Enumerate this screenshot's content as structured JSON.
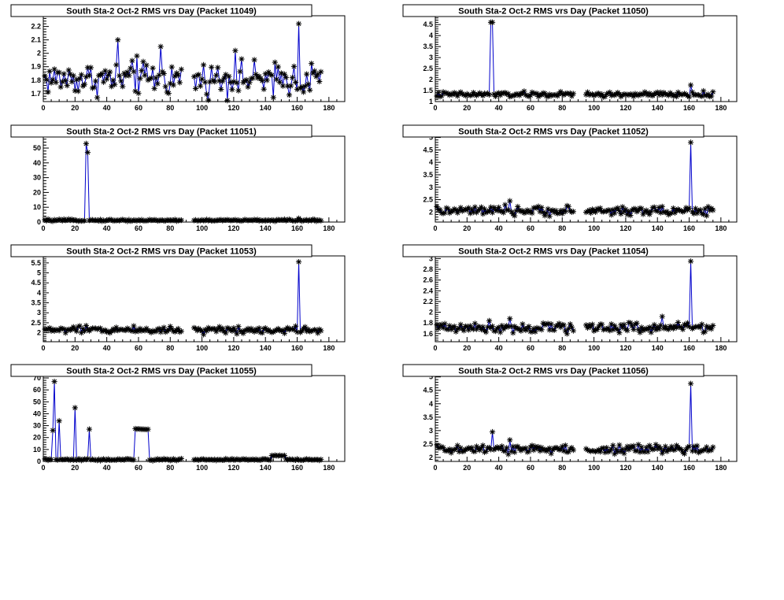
{
  "chart_data": [
    {
      "type": "line",
      "title": "South Sta-2 Oct-2 RMS vrs Day (Packet 11049)",
      "xlim": [
        0,
        190
      ],
      "ylim": [
        1.64,
        2.28
      ],
      "xticks": [
        0,
        20,
        40,
        60,
        80,
        100,
        120,
        140,
        160,
        180
      ],
      "yticks": [
        1.7,
        1.8,
        1.9,
        2.0,
        2.1,
        2.2
      ],
      "yticklabels": [
        "1.7",
        "1.8",
        "1.9",
        "2",
        "2.1",
        "2.2"
      ],
      "marker": "asterisk",
      "line_color": "#0000cc",
      "base": 1.81,
      "noise": 0.06,
      "gaps": [
        [
          88,
          94
        ]
      ],
      "spikes": [
        {
          "x": 47,
          "y": 2.1
        },
        {
          "x": 59,
          "y": 1.98
        },
        {
          "x": 74,
          "y": 2.05
        },
        {
          "x": 161,
          "y": 2.22
        },
        {
          "x": 121,
          "y": 2.02
        },
        {
          "x": 145,
          "y": 1.67
        }
      ]
    },
    {
      "type": "line",
      "title": "South Sta-2 Oct-2 RMS vrs Day (Packet 11050)",
      "xlim": [
        0,
        190
      ],
      "ylim": [
        1.0,
        4.9
      ],
      "xticks": [
        0,
        20,
        40,
        60,
        80,
        100,
        120,
        140,
        160,
        180
      ],
      "yticks": [
        1.0,
        1.5,
        2.0,
        2.5,
        3.0,
        3.5,
        4.0,
        4.5
      ],
      "yticklabels": [
        "1",
        "1.5",
        "2",
        "2.5",
        "3",
        "3.5",
        "4",
        "4.5"
      ],
      "marker": "asterisk",
      "line_color": "#0000cc",
      "base": 1.32,
      "noise": 0.06,
      "gaps": [
        [
          88,
          94
        ]
      ],
      "spikes": [
        {
          "x": 35,
          "y": 4.6
        },
        {
          "x": 36,
          "y": 4.6
        },
        {
          "x": 161,
          "y": 1.75
        }
      ]
    },
    {
      "type": "line",
      "title": "South Sta-2 Oct-2 RMS vrs Day (Packet 11051)",
      "xlim": [
        0,
        190
      ],
      "ylim": [
        0,
        58
      ],
      "xticks": [
        0,
        20,
        40,
        60,
        80,
        100,
        120,
        140,
        160,
        180
      ],
      "yticks": [
        0,
        10,
        20,
        30,
        40,
        50
      ],
      "yticklabels": [
        "0",
        "10",
        "20",
        "30",
        "40",
        "50"
      ],
      "marker": "asterisk",
      "line_color": "#0000cc",
      "base": 1.2,
      "noise": 0.3,
      "gaps": [
        [
          88,
          94
        ]
      ],
      "spikes": [
        {
          "x": 27,
          "y": 53
        },
        {
          "x": 28,
          "y": 47
        },
        {
          "x": 161,
          "y": 2.5
        }
      ]
    },
    {
      "type": "line",
      "title": "South Sta-2 Oct-2 RMS vrs Day (Packet 11052)",
      "xlim": [
        0,
        190
      ],
      "ylim": [
        1.6,
        5.05
      ],
      "xticks": [
        0,
        20,
        40,
        60,
        80,
        100,
        120,
        140,
        160,
        180
      ],
      "yticks": [
        2.0,
        2.5,
        3.0,
        3.5,
        4.0,
        4.5,
        5.0
      ],
      "yticklabels": [
        "2",
        "2.5",
        "3",
        "3.5",
        "4",
        "4.5",
        "5"
      ],
      "marker": "asterisk",
      "line_color": "#0000cc",
      "base": 2.05,
      "noise": 0.09,
      "gaps": [
        [
          88,
          94
        ]
      ],
      "spikes": [
        {
          "x": 47,
          "y": 2.45
        },
        {
          "x": 161,
          "y": 4.8
        }
      ]
    },
    {
      "type": "line",
      "title": "South Sta-2 Oct-2 RMS vrs Day (Packet 11053)",
      "xlim": [
        0,
        190
      ],
      "ylim": [
        1.55,
        5.85
      ],
      "xticks": [
        0,
        20,
        40,
        60,
        80,
        100,
        120,
        140,
        160,
        180
      ],
      "yticks": [
        2.0,
        2.5,
        3.0,
        3.5,
        4.0,
        4.5,
        5.0,
        5.5
      ],
      "yticklabels": [
        "2",
        "2.5",
        "3",
        "3.5",
        "4",
        "4.5",
        "5",
        "5.5"
      ],
      "marker": "asterisk",
      "line_color": "#0000cc",
      "base": 2.15,
      "noise": 0.09,
      "gaps": [
        [
          88,
          94
        ]
      ],
      "spikes": [
        {
          "x": 161,
          "y": 5.55
        }
      ]
    },
    {
      "type": "line",
      "title": "South Sta-2 Oct-2 RMS vrs Day (Packet 11054)",
      "xlim": [
        0,
        190
      ],
      "ylim": [
        1.45,
        3.05
      ],
      "xticks": [
        0,
        20,
        40,
        60,
        80,
        100,
        120,
        140,
        160,
        180
      ],
      "yticks": [
        1.6,
        1.8,
        2.0,
        2.2,
        2.4,
        2.6,
        2.8,
        3.0
      ],
      "yticklabels": [
        "1.6",
        "1.8",
        "2",
        "2.2",
        "2.4",
        "2.6",
        "2.8",
        "3"
      ],
      "marker": "asterisk",
      "line_color": "#0000cc",
      "base": 1.72,
      "noise": 0.05,
      "gaps": [
        [
          88,
          94
        ]
      ],
      "spikes": [
        {
          "x": 47,
          "y": 1.88
        },
        {
          "x": 143,
          "y": 1.92
        },
        {
          "x": 161,
          "y": 2.95
        }
      ]
    },
    {
      "type": "line",
      "title": "South Sta-2 Oct-2 RMS vrs Day (Packet 11055)",
      "xlim": [
        0,
        190
      ],
      "ylim": [
        0,
        72
      ],
      "xticks": [
        0,
        20,
        40,
        60,
        80,
        100,
        120,
        140,
        160,
        180
      ],
      "yticks": [
        0,
        10,
        20,
        30,
        40,
        50,
        60,
        70
      ],
      "yticklabels": [
        "0",
        "10",
        "20",
        "30",
        "40",
        "50",
        "60",
        "70"
      ],
      "marker": "asterisk",
      "line_color": "#0000cc",
      "base": 1.5,
      "noise": 0.4,
      "gaps": [
        [
          88,
          94
        ]
      ],
      "plateau": {
        "from": 58,
        "to": 66,
        "value": 27
      },
      "bump": {
        "from": 144,
        "to": 152,
        "value": 5
      },
      "spikes": [
        {
          "x": 6,
          "y": 26
        },
        {
          "x": 7,
          "y": 67
        },
        {
          "x": 10,
          "y": 34
        },
        {
          "x": 20,
          "y": 45
        },
        {
          "x": 29,
          "y": 27
        }
      ]
    },
    {
      "type": "line",
      "title": "South Sta-2 Oct-2 RMS vrs Day (Packet 11056)",
      "xlim": [
        0,
        190
      ],
      "ylim": [
        1.85,
        5.05
      ],
      "xticks": [
        0,
        20,
        40,
        60,
        80,
        100,
        120,
        140,
        160,
        180
      ],
      "yticks": [
        2.0,
        2.5,
        3.0,
        3.5,
        4.0,
        4.5,
        5.0
      ],
      "yticklabels": [
        "2",
        "2.5",
        "3",
        "3.5",
        "4",
        "4.5",
        "5"
      ],
      "marker": "asterisk",
      "line_color": "#0000cc",
      "base": 2.3,
      "noise": 0.09,
      "gaps": [
        [
          88,
          94
        ]
      ],
      "spikes": [
        {
          "x": 36,
          "y": 2.95
        },
        {
          "x": 47,
          "y": 2.65
        },
        {
          "x": 161,
          "y": 4.75
        }
      ]
    }
  ]
}
